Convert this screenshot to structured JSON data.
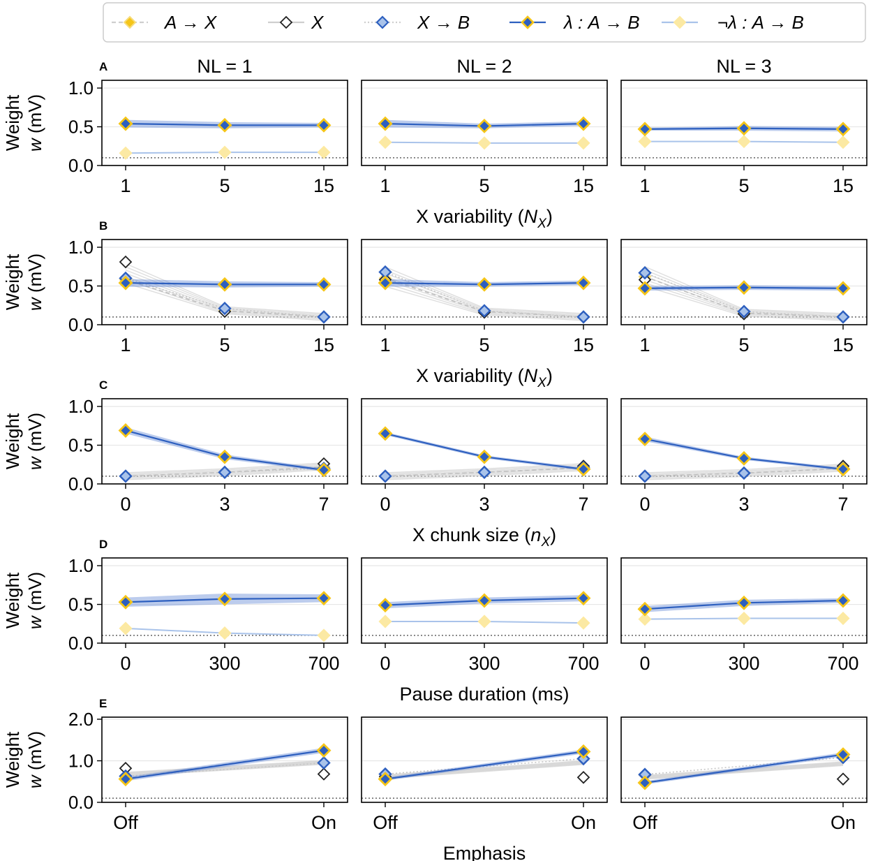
{
  "legend": {
    "items": [
      {
        "key": "ax",
        "label": "A → X"
      },
      {
        "key": "x",
        "label": "X"
      },
      {
        "key": "xb",
        "label": "X → B"
      },
      {
        "key": "lam",
        "label": "λ : A → B"
      },
      {
        "key": "nlam",
        "label": "¬λ : A → B"
      }
    ]
  },
  "colors": {
    "gold": "#f5c518",
    "blue": "#2d5fbf",
    "light_blue": "#a9c3ea",
    "light_gold": "#fbe9a4",
    "band_blue": "#6b8fd6",
    "gray_line": "#d0d0d0",
    "baseline": "#555555",
    "grid": "#e6e6e6"
  },
  "columns": [
    "NL = 1",
    "NL = 2",
    "NL = 3"
  ],
  "ylabel_line1": "Weight",
  "ylabel_line2": "w (mV)",
  "baseline_value": 0.1,
  "chart_data": [
    {
      "type": "line",
      "row": "A",
      "xlabel": "X variability (N",
      "xlabel_sub": "X",
      "xlabel_end": ")",
      "categories": [
        "1",
        "5",
        "15"
      ],
      "ylim": [
        0,
        1.1
      ],
      "yticks": [
        "0.0",
        "0.5",
        "1.0"
      ],
      "ytick_values": [
        0,
        0.5,
        1.0
      ],
      "panels": [
        {
          "lam": [
            0.54,
            0.52,
            0.52
          ],
          "lam_band": [
            0.05,
            0.04,
            0.03
          ],
          "nlam": [
            0.16,
            0.17,
            0.17
          ]
        },
        {
          "lam": [
            0.54,
            0.51,
            0.54
          ],
          "lam_band": [
            0.05,
            0.03,
            0.03
          ],
          "nlam": [
            0.3,
            0.29,
            0.29
          ]
        },
        {
          "lam": [
            0.47,
            0.48,
            0.47
          ],
          "lam_band": [
            0.02,
            0.03,
            0.03
          ],
          "nlam": [
            0.31,
            0.31,
            0.3
          ]
        }
      ]
    },
    {
      "type": "line",
      "row": "B",
      "xlabel": "X variability (N",
      "xlabel_sub": "X",
      "xlabel_end": ")",
      "categories": [
        "1",
        "5",
        "15"
      ],
      "ylim": [
        0,
        1.1
      ],
      "yticks": [
        "0.0",
        "0.5",
        "1.0"
      ],
      "ytick_values": [
        0,
        0.5,
        1.0
      ],
      "panels": [
        {
          "lam": [
            0.54,
            0.52,
            0.52
          ],
          "lam_band": [
            0.05,
            0.04,
            0.03
          ],
          "x": [
            0.81,
            0.17,
            0.1
          ],
          "xb": [
            0.6,
            0.21,
            0.1
          ],
          "ax": [
            0.58,
            0.18,
            0.1
          ]
        },
        {
          "lam": [
            0.54,
            0.52,
            0.54
          ],
          "lam_band": [
            0.05,
            0.03,
            0.03
          ],
          "x": [
            0.58,
            0.16,
            0.1
          ],
          "xb": [
            0.68,
            0.18,
            0.1
          ],
          "ax": [
            0.6,
            0.17,
            0.1
          ]
        },
        {
          "lam": [
            0.47,
            0.48,
            0.47
          ],
          "lam_band": [
            0.03,
            0.03,
            0.03
          ],
          "x": [
            0.58,
            0.14,
            0.1
          ],
          "xb": [
            0.67,
            0.17,
            0.1
          ],
          "ax": [
            0.62,
            0.15,
            0.1
          ]
        }
      ]
    },
    {
      "type": "line",
      "row": "C",
      "xlabel": "X chunk size (n",
      "xlabel_sub": "X",
      "xlabel_end": ")",
      "categories": [
        "0",
        "3",
        "7"
      ],
      "ylim": [
        0,
        1.1
      ],
      "yticks": [
        "0.0",
        "0.5",
        "1.0"
      ],
      "ytick_values": [
        0,
        0.5,
        1.0
      ],
      "panels": [
        {
          "lam": [
            0.69,
            0.35,
            0.18
          ],
          "lam_band": [
            0.04,
            0.03,
            0.02
          ],
          "x": [
            0.1,
            0.15,
            0.26
          ],
          "xb": [
            0.1,
            0.15,
            0.2
          ],
          "ax": [
            0.1,
            0.15,
            0.22
          ]
        },
        {
          "lam": [
            0.65,
            0.35,
            0.19
          ],
          "lam_band": [
            0.02,
            0.02,
            0.02
          ],
          "x": [
            0.1,
            0.15,
            0.23
          ],
          "xb": [
            0.1,
            0.15,
            0.21
          ],
          "ax": [
            0.1,
            0.15,
            0.21
          ]
        },
        {
          "lam": [
            0.58,
            0.33,
            0.19
          ],
          "lam_band": [
            0.03,
            0.02,
            0.02
          ],
          "x": [
            0.1,
            0.14,
            0.23
          ],
          "xb": [
            0.1,
            0.14,
            0.2
          ],
          "ax": [
            0.1,
            0.14,
            0.2
          ]
        }
      ]
    },
    {
      "type": "line",
      "row": "D",
      "xlabel": "Pause duration (ms)",
      "xlabel_sub": "",
      "xlabel_end": "",
      "categories": [
        "0",
        "300",
        "700"
      ],
      "ylim": [
        0,
        1.1
      ],
      "yticks": [
        "0.0",
        "0.5",
        "1.0"
      ],
      "ytick_values": [
        0,
        0.5,
        1.0
      ],
      "panels": [
        {
          "lam": [
            0.53,
            0.57,
            0.58
          ],
          "lam_band": [
            0.06,
            0.07,
            0.05
          ],
          "nlam": [
            0.19,
            0.13,
            0.1
          ]
        },
        {
          "lam": [
            0.49,
            0.55,
            0.58
          ],
          "lam_band": [
            0.04,
            0.04,
            0.04
          ],
          "nlam": [
            0.28,
            0.28,
            0.26
          ]
        },
        {
          "lam": [
            0.44,
            0.52,
            0.55
          ],
          "lam_band": [
            0.04,
            0.04,
            0.03
          ],
          "nlam": [
            0.31,
            0.32,
            0.32
          ]
        }
      ]
    },
    {
      "type": "line",
      "row": "E",
      "xlabel": "Emphasis",
      "xlabel_sub": "",
      "xlabel_end": "",
      "categories": [
        "Off",
        "On"
      ],
      "ylim": [
        0,
        2.05
      ],
      "yticks": [
        "0.0",
        "1.0",
        "2.0"
      ],
      "ytick_values": [
        0,
        1.0,
        2.0
      ],
      "panels": [
        {
          "lam": [
            0.56,
            1.25
          ],
          "lam_band": [
            0.05,
            0.06
          ],
          "x": [
            0.82,
            0.68
          ],
          "xb": [
            0.63,
            0.95
          ],
          "ax": [
            0.58,
            1.25
          ]
        },
        {
          "lam": [
            0.56,
            1.22
          ],
          "lam_band": [
            0.04,
            0.05
          ],
          "x": [
            0.62,
            0.6
          ],
          "xb": [
            0.68,
            1.05
          ],
          "ax": [
            0.55,
            1.22
          ]
        },
        {
          "lam": [
            0.47,
            1.15
          ],
          "lam_band": [
            0.04,
            0.05
          ],
          "x": [
            0.66,
            0.56
          ],
          "xb": [
            0.67,
            1.08
          ],
          "ax": [
            0.48,
            1.15
          ]
        }
      ]
    }
  ]
}
